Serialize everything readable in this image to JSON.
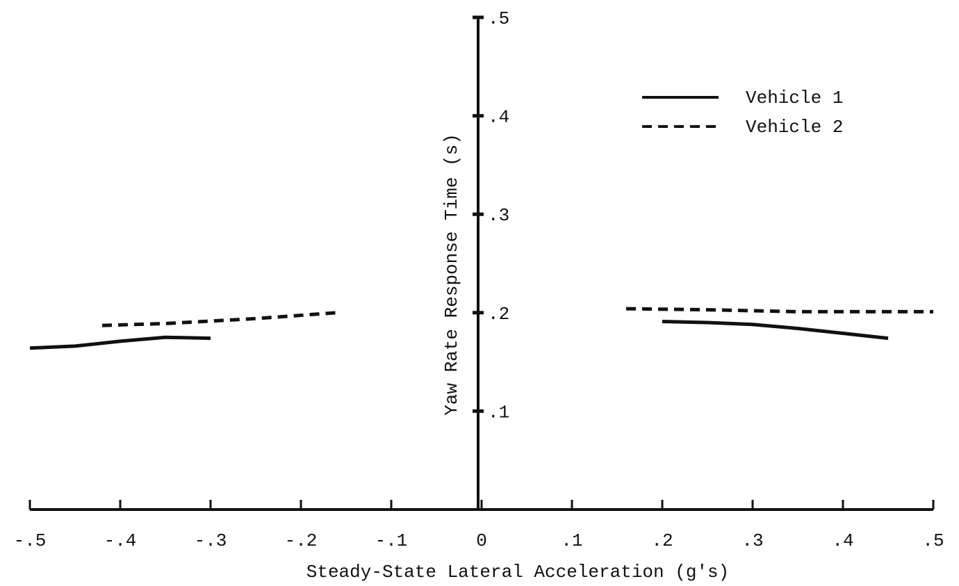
{
  "chart_data": {
    "type": "line",
    "xlabel": "Steady-State Lateral Acceleration (g's)",
    "ylabel": "Yaw Rate Response Time (s)",
    "xlim": [
      -0.5,
      0.5
    ],
    "ylim": [
      0,
      0.5
    ],
    "x_ticks": [
      {
        "value": -0.5,
        "label": "-.5"
      },
      {
        "value": -0.4,
        "label": "-.4"
      },
      {
        "value": -0.3,
        "label": "-.3"
      },
      {
        "value": -0.2,
        "label": "-.2"
      },
      {
        "value": -0.1,
        "label": "-.1"
      },
      {
        "value": 0,
        "label": "0"
      },
      {
        "value": 0.1,
        "label": ".1"
      },
      {
        "value": 0.2,
        "label": ".2"
      },
      {
        "value": 0.3,
        "label": ".3"
      },
      {
        "value": 0.4,
        "label": ".4"
      },
      {
        "value": 0.5,
        "label": ".5"
      }
    ],
    "y_ticks": [
      {
        "value": 0.1,
        "label": ".1"
      },
      {
        "value": 0.2,
        "label": ".2"
      },
      {
        "value": 0.3,
        "label": ".3"
      },
      {
        "value": 0.4,
        "label": ".4"
      },
      {
        "value": 0.5,
        "label": ".5"
      }
    ],
    "legend_position": "top-right",
    "grid": false,
    "series": [
      {
        "name": "Vehicle 1",
        "style": "solid",
        "color": "#111111",
        "segments": [
          {
            "x": [
              -0.5,
              -0.45,
              -0.4,
              -0.35,
              -0.3
            ],
            "y": [
              0.164,
              0.166,
              0.171,
              0.175,
              0.174
            ]
          },
          {
            "x": [
              0.2,
              0.25,
              0.3,
              0.35,
              0.4,
              0.45
            ],
            "y": [
              0.191,
              0.19,
              0.188,
              0.184,
              0.179,
              0.174
            ]
          }
        ]
      },
      {
        "name": "Vehicle 2",
        "style": "dashed",
        "color": "#111111",
        "segments": [
          {
            "x": [
              -0.42,
              -0.35,
              -0.25,
              -0.16
            ],
            "y": [
              0.187,
              0.189,
              0.194,
              0.2
            ]
          },
          {
            "x": [
              0.16,
              0.25,
              0.35,
              0.5
            ],
            "y": [
              0.204,
              0.203,
              0.201,
              0.201
            ]
          }
        ]
      }
    ]
  }
}
